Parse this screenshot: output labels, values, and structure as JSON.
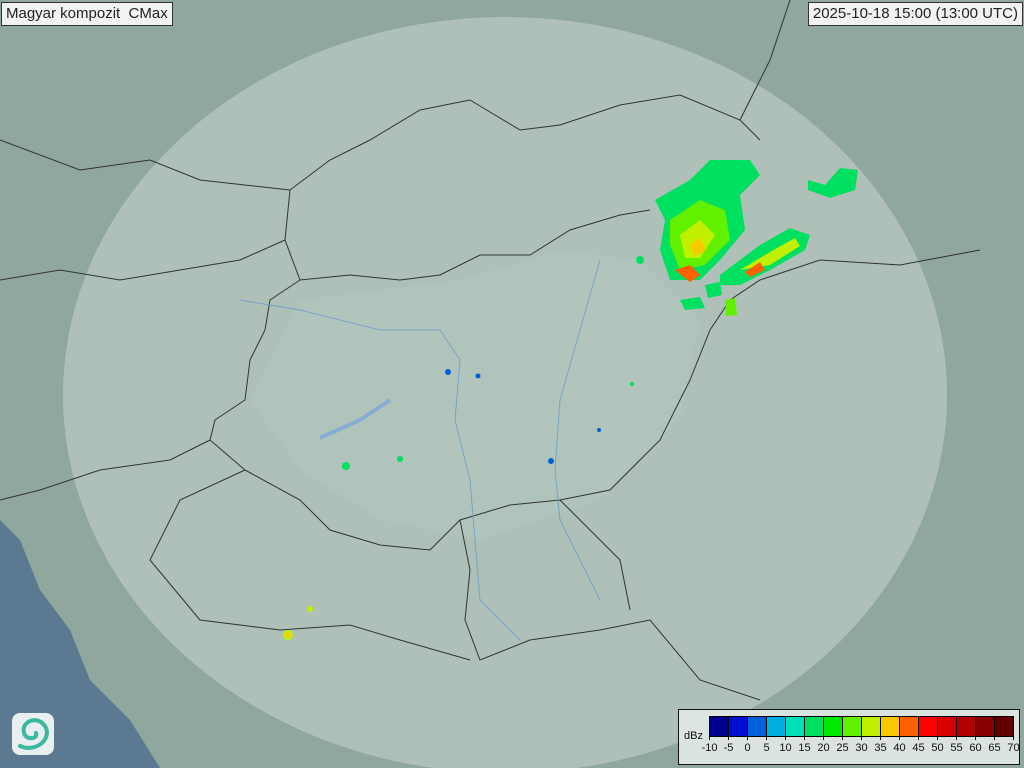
{
  "title": "Magyar kompozit  CMax",
  "timestamp": "2025-10-18 15:00 (13:00 UTC)",
  "legend": {
    "unit": "dBz",
    "ticks": [
      "-10",
      "-5",
      "0",
      "5",
      "10",
      "15",
      "20",
      "25",
      "30",
      "35",
      "40",
      "45",
      "50",
      "55",
      "60",
      "65",
      "70"
    ],
    "colors": [
      "#000090",
      "#0010d0",
      "#0060d8",
      "#00b0e0",
      "#00e0b8",
      "#00e060",
      "#00e800",
      "#60f000",
      "#c0f000",
      "#f8c800",
      "#ff6000",
      "#ff0000",
      "#d80000",
      "#b00000",
      "#880000",
      "#600000"
    ]
  },
  "colors": {
    "land": "#8fa79c",
    "coverage": "#c9d6cf",
    "sea": "#5b7a92",
    "border": "#333333",
    "river": "#6a9ad0"
  },
  "logo_icon": "swirl-logo-icon"
}
